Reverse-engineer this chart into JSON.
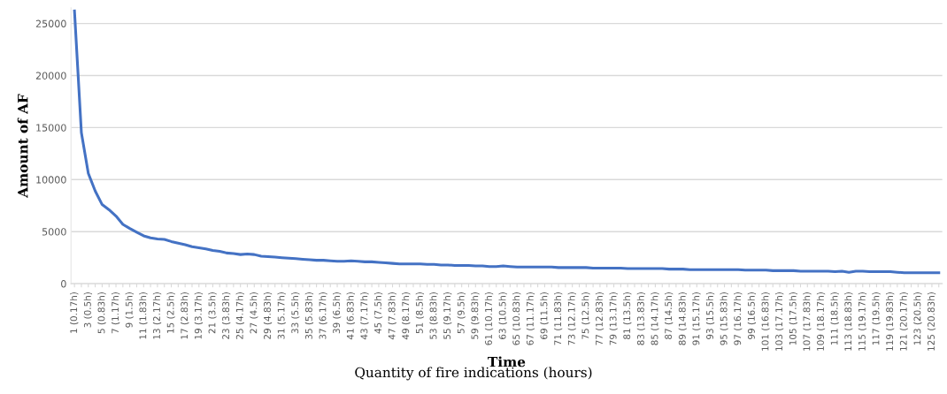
{
  "chart_data": {
    "type": "line",
    "xlabel": "Time",
    "ylabel": "Amount of AF",
    "annotations": [
      "Quantity of fire indications (hours)"
    ],
    "categories": [
      "1 (0.17h)",
      null,
      "3 (0.5h)",
      null,
      "5 (0.83h)",
      null,
      "7 (1.17h)",
      null,
      "9 (1.5h)",
      null,
      "11 (1.83h)",
      null,
      "13 (2.17h)",
      null,
      "15 (2.5h)",
      null,
      "17 (2.83h)",
      null,
      "19 (3.17h)",
      null,
      "21 (3.5h)",
      null,
      "23 (3.83h)",
      null,
      "25 (4.17h)",
      null,
      "27 (4.5h)",
      null,
      "29 (4.83h)",
      null,
      "31 (5.17h)",
      null,
      "33 (5.5h)",
      null,
      "35 (5.83h)",
      null,
      "37 (6.17h)",
      null,
      "39 (6.5h)",
      null,
      "41 (6.83h)",
      null,
      "43 (7.17h)",
      null,
      "45 (7.5h)",
      null,
      "47 (7.83h)",
      null,
      "49 (8.17h)",
      null,
      "51 (8.5h)",
      null,
      "53 (8.83h)",
      null,
      "55 (9.17h)",
      null,
      "57 (9.5h)",
      null,
      "59 (9.83h)",
      null,
      "61 (10.17h)",
      null,
      "63 (10.5h)",
      null,
      "65 (10.83h)",
      null,
      "67 (11.17h)",
      null,
      "69 (11.5h)",
      null,
      "71 (11.83h)",
      null,
      "73 (12.17h)",
      null,
      "75 (12.5h)",
      null,
      "77 (12.83h)",
      null,
      "79 (13.17h)",
      null,
      "81 (13.5h)",
      null,
      "83 (13.83h)",
      null,
      "85 (14.17h)",
      null,
      "87 (14.5h)",
      null,
      "89 (14.83h)",
      null,
      "91 (15.17h)",
      null,
      "93 (15.5h)",
      null,
      "95 (15.83h)",
      null,
      "97 (16.17h)",
      null,
      "99 (16.5h)",
      null,
      "101 (16.83h)",
      null,
      "103 (17.17h)",
      null,
      "105 (17.5h)",
      null,
      "107 (17.83h)",
      null,
      "109 (18.17h)",
      null,
      "111 (18.5h)",
      null,
      "113 (18.83h)",
      null,
      "115 (19.17h)",
      null,
      "117 (19.5h)",
      null,
      "119 (19.83h)",
      null,
      "121 (20.17h)",
      null,
      "123 (20.5h)",
      null,
      "125 (20.83h)",
      null
    ],
    "series": [
      {
        "color": "#4472c4",
        "values": [
          26200,
          14500,
          10600,
          8900,
          7600,
          7100,
          6500,
          5700,
          5300,
          4950,
          4600,
          4400,
          4300,
          4250,
          4050,
          3900,
          3750,
          3550,
          3450,
          3350,
          3200,
          3100,
          2950,
          2900,
          2800,
          2850,
          2800,
          2650,
          2600,
          2550,
          2500,
          2450,
          2400,
          2350,
          2300,
          2250,
          2250,
          2200,
          2150,
          2150,
          2200,
          2150,
          2100,
          2100,
          2050,
          2000,
          1950,
          1900,
          1900,
          1900,
          1900,
          1850,
          1850,
          1800,
          1800,
          1750,
          1750,
          1750,
          1700,
          1700,
          1650,
          1650,
          1700,
          1650,
          1600,
          1600,
          1600,
          1600,
          1600,
          1600,
          1550,
          1550,
          1550,
          1550,
          1550,
          1500,
          1500,
          1500,
          1500,
          1500,
          1450,
          1450,
          1450,
          1450,
          1450,
          1450,
          1400,
          1400,
          1400,
          1350,
          1350,
          1350,
          1350,
          1350,
          1350,
          1350,
          1350,
          1300,
          1300,
          1300,
          1300,
          1250,
          1250,
          1250,
          1250,
          1200,
          1200,
          1200,
          1200,
          1200,
          1150,
          1200,
          1100,
          1200,
          1200,
          1150,
          1150,
          1150,
          1150,
          1100,
          1050,
          1050,
          1050,
          1050,
          1050,
          1050
        ]
      }
    ],
    "ylim": [
      0,
      26500
    ],
    "yticks": [
      0,
      5000,
      10000,
      15000,
      20000,
      25000
    ],
    "grid": "y",
    "marker": "none",
    "line_style": "solid"
  }
}
